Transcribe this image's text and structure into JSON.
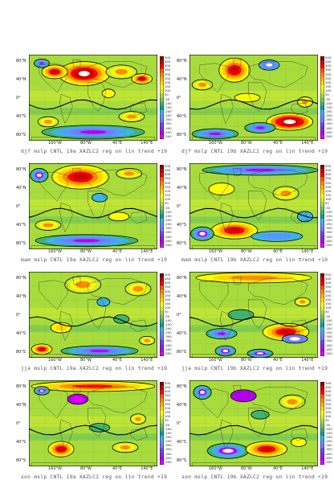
{
  "panels": [
    {
      "caption": "djf mslp CNTL 19a XAZLC2 reg on lin trend +19",
      "variant": 0
    },
    {
      "caption": "djf mslp CNTL 19b XAZLC2 reg on lin trend +19",
      "variant": 1
    },
    {
      "caption": "mam mslp CNTL 19a XAZLC2 reg on lin trend +19",
      "variant": 2
    },
    {
      "caption": "mam mslp CNTL 19b XAZLC2 reg on lin trend +19",
      "variant": 3
    },
    {
      "caption": "jja mslp CNTL 19a XAZLC2 reg on lin trend +19",
      "variant": 4
    },
    {
      "caption": "jja mslp CNTL 19b XAZLC2 reg on lin trend +19",
      "variant": 5
    },
    {
      "caption": "son mslp CNTL 19a XAZLC2 reg on lin trend +19",
      "variant": 6
    },
    {
      "caption": "son mslp CNTL 19b XAZLC2 reg on lin trend +19",
      "variant": 7
    }
  ],
  "lat_labels": [
    "80°N",
    "40°N",
    "0°",
    "40°S",
    "80°S"
  ],
  "lon_labels": [
    "160°W",
    "80°W",
    "40°E",
    "140°E"
  ],
  "colorbar_labels": [
    "500",
    "450",
    "400",
    "350",
    "300",
    "250",
    "200",
    "150",
    "100",
    "50",
    "-50",
    "-100",
    "-150",
    "-200",
    "-250",
    "-300",
    "-350",
    "-400",
    "-450",
    "-500"
  ],
  "colorbar_colors": [
    "#8b0000",
    "#c80000",
    "#ff0000",
    "#ff5a00",
    "#ff8c00",
    "#ffb400",
    "#ffd700",
    "#ffff00",
    "#d8f028",
    "#a8dc3c",
    "#78c850",
    "#40b46e",
    "#00a0a0",
    "#3cb4e6",
    "#5a96ff",
    "#7878ff",
    "#6450e6",
    "#8c28dc",
    "#b400f0",
    "#e600ff"
  ]
}
